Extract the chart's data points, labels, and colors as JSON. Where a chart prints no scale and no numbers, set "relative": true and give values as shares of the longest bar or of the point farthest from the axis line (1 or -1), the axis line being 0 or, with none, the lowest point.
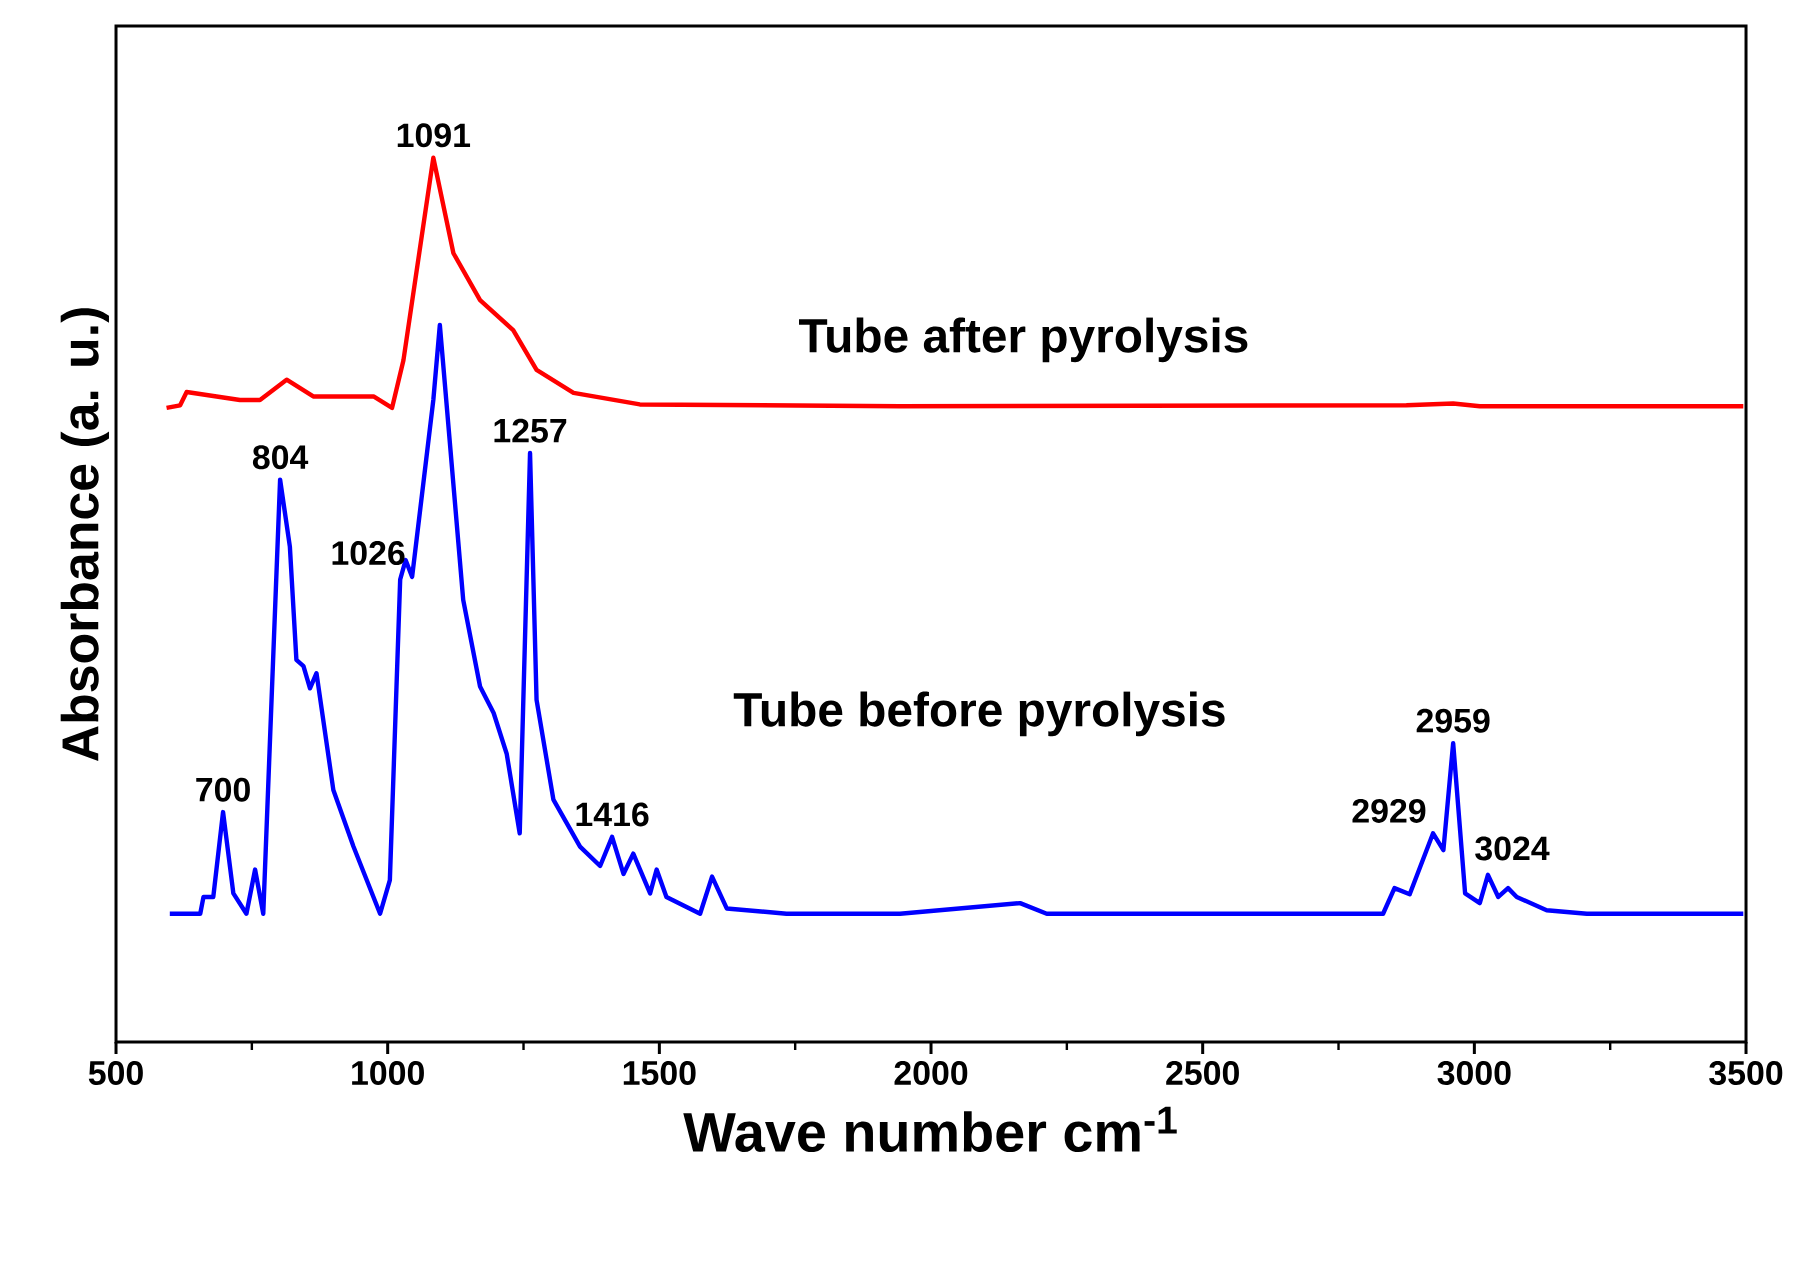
{
  "chart_data": {
    "type": "line",
    "relative": true,
    "xlabel": "Wave number cm$^{-1}$",
    "ylabel": "Absorbance (a. u.)",
    "xlim": [
      500,
      3500
    ],
    "xticks": [
      500,
      1000,
      1500,
      2000,
      2500,
      3000,
      3500
    ],
    "series": [
      {
        "name": "Tube after pyrolysis",
        "color": "#ff0000",
        "x": [
          593,
          618,
          630,
          728,
          765,
          814,
          863,
          974,
          1008,
          1029,
          1084,
          1121,
          1170,
          1231,
          1274,
          1342,
          1464,
          1943,
          2875,
          2961,
          3010,
          3495
        ],
        "values": [
          0.717,
          0.72,
          0.735,
          0.726,
          0.726,
          0.749,
          0.73,
          0.73,
          0.717,
          0.771,
          1.0,
          0.892,
          0.839,
          0.805,
          0.76,
          0.734,
          0.721,
          0.719,
          0.72,
          0.722,
          0.719,
          0.719
        ]
      },
      {
        "name": "Tube before pyrolysis",
        "color": "#0000ff",
        "x": [
          599,
          655,
          661,
          679,
          697,
          716,
          740,
          756,
          771,
          802,
          820,
          832,
          845,
          857,
          869,
          900,
          937,
          986,
          1004,
          1023,
          1033,
          1045,
          1084,
          1096,
          1139,
          1170,
          1195,
          1219,
          1243,
          1262,
          1274,
          1305,
          1354,
          1391,
          1413,
          1434,
          1452,
          1483,
          1495,
          1513,
          1575,
          1597,
          1624,
          1734,
          1943,
          2164,
          2213,
          2832,
          2853,
          2881,
          2924,
          2943,
          2961,
          2983,
          3010,
          3025,
          3044,
          3062,
          3078,
          3133,
          3207,
          3495
        ],
        "values": [
          0.145,
          0.145,
          0.164,
          0.164,
          0.26,
          0.168,
          0.145,
          0.195,
          0.145,
          0.636,
          0.56,
          0.432,
          0.425,
          0.4,
          0.417,
          0.285,
          0.221,
          0.145,
          0.183,
          0.523,
          0.545,
          0.526,
          0.726,
          0.811,
          0.5,
          0.402,
          0.372,
          0.326,
          0.236,
          0.666,
          0.387,
          0.274,
          0.221,
          0.199,
          0.232,
          0.19,
          0.213,
          0.168,
          0.195,
          0.164,
          0.145,
          0.187,
          0.151,
          0.145,
          0.145,
          0.157,
          0.145,
          0.145,
          0.174,
          0.167,
          0.236,
          0.217,
          0.338,
          0.168,
          0.157,
          0.189,
          0.164,
          0.174,
          0.164,
          0.149,
          0.145,
          0.145
        ]
      }
    ],
    "annotations": [
      {
        "text": "700",
        "x": 697,
        "y": 0.26
      },
      {
        "text": "804",
        "x": 802,
        "y": 0.636
      },
      {
        "text": "1026",
        "x": 1023,
        "y": 0.523
      },
      {
        "text": "1091",
        "x": 1084,
        "y": 1.0
      },
      {
        "text": "1257",
        "x": 1262,
        "y": 0.666
      },
      {
        "text": "1416",
        "x": 1413,
        "y": 0.232
      },
      {
        "text": "2929",
        "x": 2924,
        "y": 0.236
      },
      {
        "text": "2959",
        "x": 2961,
        "y": 0.338
      },
      {
        "text": "3024",
        "x": 3025,
        "y": 0.189
      }
    ],
    "legend": false
  }
}
